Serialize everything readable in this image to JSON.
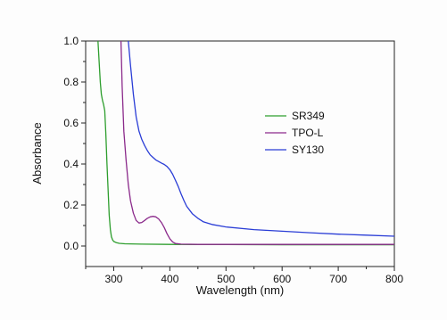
{
  "chart_data": {
    "type": "line",
    "title": "",
    "xlabel": "Wavelength (nm)",
    "ylabel": "Absorbance",
    "xlim": [
      250,
      800
    ],
    "ylim": [
      -0.1,
      1.0
    ],
    "x_ticks": [
      300,
      400,
      500,
      600,
      700,
      800
    ],
    "x_tick_labels": [
      "300",
      "400",
      "500",
      "600",
      "700",
      "800"
    ],
    "y_ticks": [
      0.0,
      0.2,
      0.4,
      0.6,
      0.8,
      1.0
    ],
    "y_tick_labels": [
      "0.0",
      "0.2",
      "0.4",
      "0.6",
      "0.8",
      "1.0"
    ],
    "grid": false,
    "legend_position": "center-right",
    "series": [
      {
        "name": "SR349",
        "color": "#2e9e2e",
        "points": [
          [
            272,
            1.0
          ],
          [
            274,
            0.9
          ],
          [
            276,
            0.8
          ],
          [
            278,
            0.74
          ],
          [
            280,
            0.71
          ],
          [
            282,
            0.69
          ],
          [
            284,
            0.66
          ],
          [
            286,
            0.55
          ],
          [
            288,
            0.4
          ],
          [
            290,
            0.27
          ],
          [
            292,
            0.15
          ],
          [
            294,
            0.08
          ],
          [
            296,
            0.045
          ],
          [
            298,
            0.03
          ],
          [
            300,
            0.022
          ],
          [
            305,
            0.016
          ],
          [
            310,
            0.013
          ],
          [
            320,
            0.011
          ],
          [
            350,
            0.009
          ],
          [
            400,
            0.008
          ],
          [
            450,
            0.007
          ],
          [
            500,
            0.007
          ],
          [
            600,
            0.006
          ],
          [
            700,
            0.006
          ],
          [
            800,
            0.006
          ]
        ]
      },
      {
        "name": "TPO-L",
        "color": "#8b2a8b",
        "points": [
          [
            313,
            1.0
          ],
          [
            315,
            0.78
          ],
          [
            318,
            0.56
          ],
          [
            322,
            0.42
          ],
          [
            326,
            0.3
          ],
          [
            330,
            0.22
          ],
          [
            335,
            0.16
          ],
          [
            340,
            0.125
          ],
          [
            345,
            0.112
          ],
          [
            350,
            0.115
          ],
          [
            355,
            0.125
          ],
          [
            360,
            0.135
          ],
          [
            365,
            0.142
          ],
          [
            370,
            0.145
          ],
          [
            375,
            0.142
          ],
          [
            380,
            0.132
          ],
          [
            385,
            0.115
          ],
          [
            390,
            0.09
          ],
          [
            395,
            0.06
          ],
          [
            400,
            0.035
          ],
          [
            405,
            0.02
          ],
          [
            410,
            0.012
          ],
          [
            420,
            0.009
          ],
          [
            450,
            0.008
          ],
          [
            500,
            0.008
          ],
          [
            600,
            0.008
          ],
          [
            700,
            0.008
          ],
          [
            800,
            0.008
          ]
        ]
      },
      {
        "name": "SY130",
        "color": "#2a3dd6",
        "points": [
          [
            326,
            1.0
          ],
          [
            330,
            0.88
          ],
          [
            335,
            0.74
          ],
          [
            340,
            0.63
          ],
          [
            345,
            0.56
          ],
          [
            350,
            0.52
          ],
          [
            355,
            0.49
          ],
          [
            360,
            0.465
          ],
          [
            365,
            0.445
          ],
          [
            370,
            0.432
          ],
          [
            375,
            0.42
          ],
          [
            380,
            0.412
          ],
          [
            385,
            0.405
          ],
          [
            390,
            0.398
          ],
          [
            395,
            0.388
          ],
          [
            400,
            0.372
          ],
          [
            405,
            0.35
          ],
          [
            410,
            0.32
          ],
          [
            415,
            0.29
          ],
          [
            420,
            0.255
          ],
          [
            425,
            0.222
          ],
          [
            430,
            0.194
          ],
          [
            440,
            0.158
          ],
          [
            450,
            0.135
          ],
          [
            460,
            0.118
          ],
          [
            475,
            0.105
          ],
          [
            500,
            0.093
          ],
          [
            550,
            0.08
          ],
          [
            600,
            0.072
          ],
          [
            650,
            0.065
          ],
          [
            700,
            0.058
          ],
          [
            750,
            0.053
          ],
          [
            800,
            0.048
          ]
        ]
      }
    ]
  }
}
